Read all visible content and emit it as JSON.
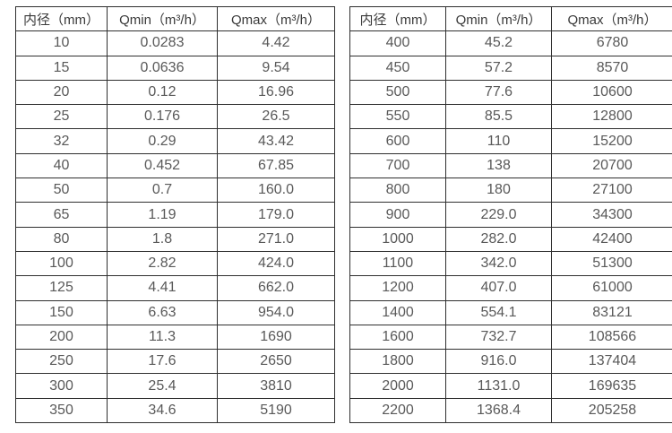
{
  "colors": {
    "background": "#ffffff",
    "grid_border": "#2f2f2f",
    "header_text": "#3a3a3a",
    "cell_text": "#595959"
  },
  "tables": [
    {
      "name": "flow-range-table-small-diameters",
      "headers": [
        "内径（mm）",
        "Qmin（m³/h）",
        "Qmax（m³/h）"
      ],
      "rows": [
        [
          "10",
          "0.0283",
          "4.42"
        ],
        [
          "15",
          "0.0636",
          "9.54"
        ],
        [
          "20",
          "0.12",
          "16.96"
        ],
        [
          "25",
          "0.176",
          "26.5"
        ],
        [
          "32",
          "0.29",
          "43.42"
        ],
        [
          "40",
          "0.452",
          "67.85"
        ],
        [
          "50",
          "0.7",
          "160.0"
        ],
        [
          "65",
          "1.19",
          "179.0"
        ],
        [
          "80",
          "1.8",
          "271.0"
        ],
        [
          "100",
          "2.82",
          "424.0"
        ],
        [
          "125",
          "4.41",
          "662.0"
        ],
        [
          "150",
          "6.63",
          "954.0"
        ],
        [
          "200",
          "11.3",
          "1690"
        ],
        [
          "250",
          "17.6",
          "2650"
        ],
        [
          "300",
          "25.4",
          "3810"
        ],
        [
          "350",
          "34.6",
          "5190"
        ]
      ]
    },
    {
      "name": "flow-range-table-large-diameters",
      "headers": [
        "内径（mm）",
        "Qmin（m³/h）",
        "Qmax（m³/h）"
      ],
      "rows": [
        [
          "400",
          "45.2",
          "6780"
        ],
        [
          "450",
          "57.2",
          "8570"
        ],
        [
          "500",
          "77.6",
          "10600"
        ],
        [
          "550",
          "85.5",
          "12800"
        ],
        [
          "600",
          "110",
          "15200"
        ],
        [
          "700",
          "138",
          "20700"
        ],
        [
          "800",
          "180",
          "27100"
        ],
        [
          "900",
          "229.0",
          "34300"
        ],
        [
          "1000",
          "282.0",
          "42400"
        ],
        [
          "1100",
          "342.0",
          "51300"
        ],
        [
          "1200",
          "407.0",
          "61000"
        ],
        [
          "1400",
          "554.1",
          "83121"
        ],
        [
          "1600",
          "732.7",
          "108566"
        ],
        [
          "1800",
          "916.0",
          "137404"
        ],
        [
          "2000",
          "1131.0",
          "169635"
        ],
        [
          "2200",
          "1368.4",
          "205258"
        ]
      ]
    }
  ]
}
